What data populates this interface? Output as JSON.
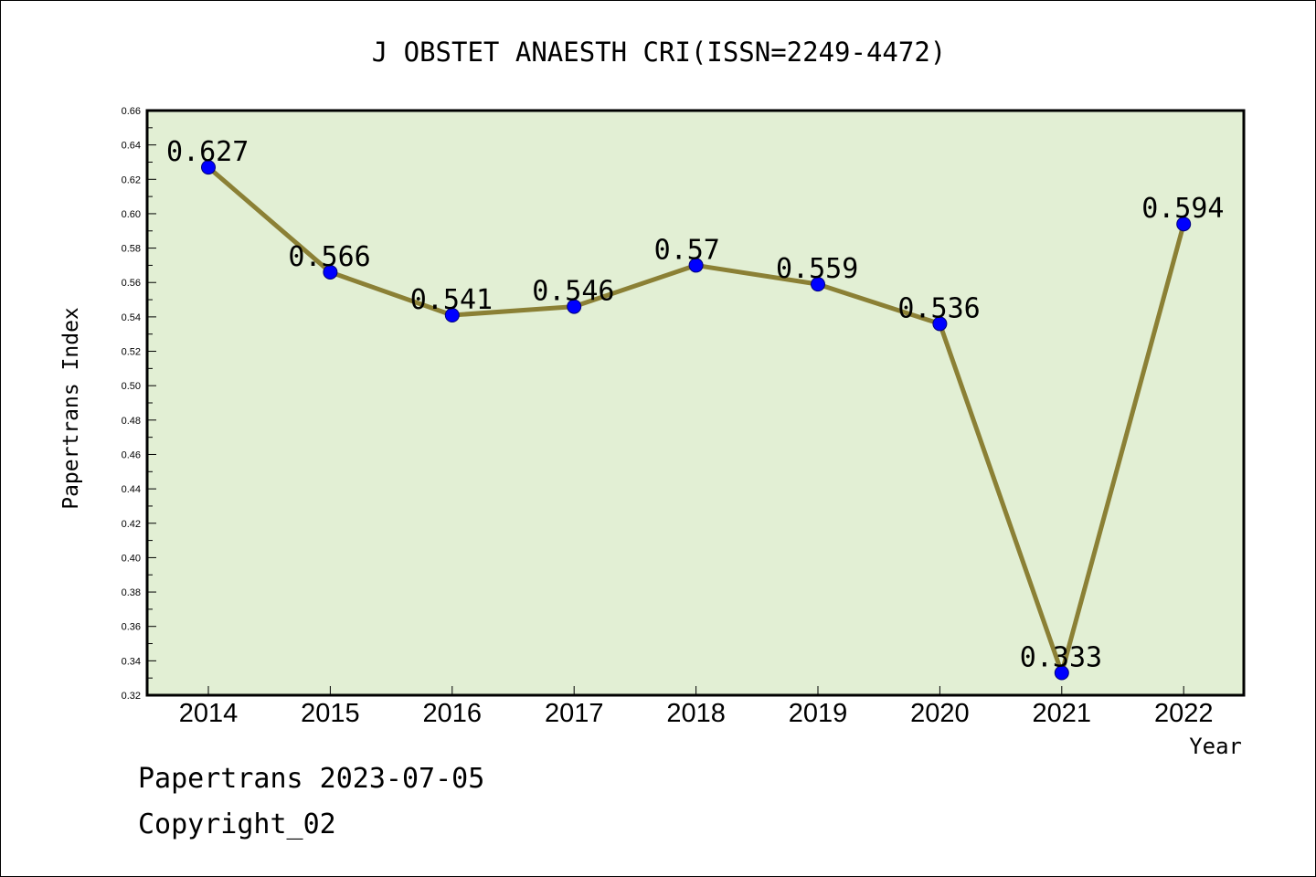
{
  "chart_data": {
    "type": "line",
    "title": "J OBSTET ANAESTH CRI(ISSN=2249-4472)",
    "xlabel": "Year",
    "ylabel": "Papertrans Index",
    "categories": [
      "2014",
      "2015",
      "2016",
      "2017",
      "2018",
      "2019",
      "2020",
      "2021",
      "2022"
    ],
    "values": [
      0.627,
      0.566,
      0.541,
      0.546,
      0.57,
      0.559,
      0.536,
      0.333,
      0.594
    ],
    "data_labels": [
      "0.627",
      "0.566",
      "0.541",
      "0.546",
      "0.57",
      "0.559",
      "0.536",
      "0.333",
      "0.594"
    ],
    "ylim": [
      0.32,
      0.66
    ],
    "yticks": [
      "0.32",
      "0.34",
      "0.36",
      "0.38",
      "0.40",
      "0.42",
      "0.44",
      "0.46",
      "0.48",
      "0.50",
      "0.52",
      "0.54",
      "0.56",
      "0.58",
      "0.60",
      "0.62",
      "0.64",
      "0.66"
    ],
    "grid": false,
    "legend": "none",
    "colors": {
      "plot_background": "#e2efd4",
      "line": "#8b8035",
      "marker": "#0000ff"
    }
  },
  "footer": {
    "source": "Papertrans 2023-07-05",
    "copyright": "Copyright_02"
  }
}
